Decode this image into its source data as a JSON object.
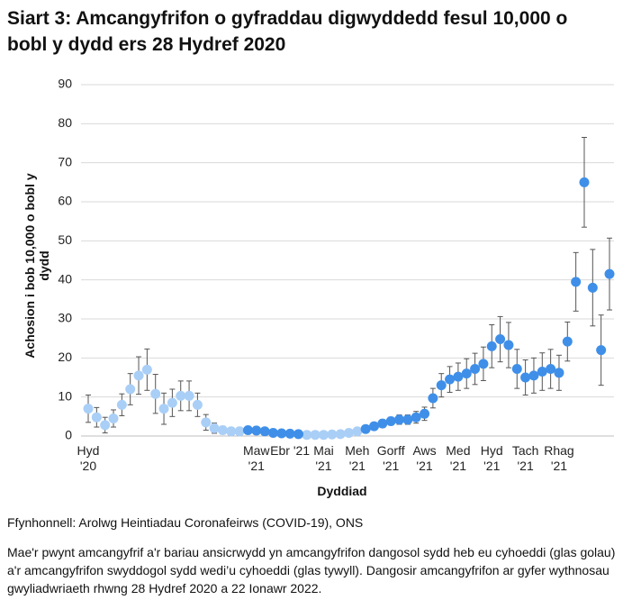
{
  "chart_data": {
    "type": "scatter",
    "title": "Siart 3: Amcangyfrifon o gyfraddau digwyddedd fesul 10,000 o bobl y dydd ers 28 Hydref 2020",
    "x_label": "Dyddiad",
    "y_label": "Achosion i bob 10,000 o bobl y dydd",
    "source": "Ffynhonnell: Arolwg Heintiadau Coronafeirws (COVID-19), ONS",
    "note": "Mae'r pwynt amcangyfrif a'r bariau ansicrwydd yn amcangyfrifon dangosol sydd heb eu cyhoeddi (glas golau) a'r amcangyfrifon swyddogol sydd wedi’u cyhoeddi (glas tywyll). Dangosir amcangyfrifon ar gyfer wythnosau gwyliadwriaeth rhwng 28 Hydref 2020 a 22 Ionawr 2022.",
    "categories": [
      "Hyd '20",
      null,
      null,
      null,
      null,
      null,
      null,
      null,
      null,
      null,
      null,
      null,
      null,
      null,
      null,
      null,
      null,
      null,
      null,
      null,
      "Maw '21",
      null,
      null,
      null,
      "Ebr '21",
      null,
      null,
      null,
      "Mai '21",
      null,
      null,
      null,
      "Meh '21",
      null,
      null,
      null,
      "Gorff '21",
      null,
      null,
      null,
      "Aws '21",
      null,
      null,
      null,
      "Med '21",
      null,
      null,
      null,
      "Hyd '21",
      null,
      null,
      null,
      "Tach '21",
      null,
      null,
      null,
      "Rhag '21",
      null,
      null,
      null,
      null,
      null,
      null
    ],
    "series": [
      {
        "color": "#a9cff7",
        "values": [
          7,
          4.8,
          2.8,
          4.5,
          8,
          12,
          15.5,
          17,
          10.8,
          7,
          8.5,
          10.3,
          10.3,
          8,
          3.5,
          2,
          1.5,
          1.2,
          1.2,
          null,
          null,
          null,
          null,
          null,
          null,
          null,
          0.3,
          0.3,
          0.3,
          0.4,
          0.5,
          0.8,
          1.2,
          null,
          null,
          null,
          null,
          null,
          null,
          null,
          null,
          null,
          null,
          null,
          null,
          null,
          null,
          null,
          null,
          null,
          null,
          null,
          null,
          null,
          null,
          null,
          null,
          null,
          null,
          null,
          null,
          null,
          null
        ],
        "errors": [
          3.5,
          2.5,
          2,
          2.2,
          2.8,
          4,
          4.8,
          5.3,
          5,
          4,
          3.5,
          3.8,
          3.8,
          3,
          2,
          1.3,
          1,
          1,
          1,
          null,
          null,
          null,
          null,
          null,
          null,
          null,
          0.3,
          0.3,
          0.3,
          0.3,
          0.4,
          0.5,
          0.6,
          null,
          null,
          null,
          null,
          null,
          null,
          null,
          null,
          null,
          null,
          null,
          null,
          null,
          null,
          null,
          null,
          null,
          null,
          null,
          null,
          null,
          null,
          null,
          null,
          null,
          null,
          null,
          null,
          null,
          null
        ]
      },
      {
        "color": "#3f8fe9",
        "values": [
          null,
          null,
          null,
          null,
          null,
          null,
          null,
          null,
          null,
          null,
          null,
          null,
          null,
          null,
          null,
          null,
          null,
          null,
          null,
          1.5,
          1.4,
          1.2,
          0.8,
          0.7,
          0.6,
          0.5,
          null,
          null,
          null,
          null,
          null,
          null,
          null,
          1.8,
          2.5,
          3.2,
          3.8,
          4.2,
          4.2,
          4.8,
          5.7,
          9.7,
          13,
          14.5,
          15.2,
          16,
          17.2,
          18.5,
          23,
          24.8,
          23.3,
          17.2,
          15,
          15.5,
          16.5,
          17.2,
          16.2,
          24.2,
          39.5,
          65,
          38,
          22,
          41.5
        ],
        "errors": [
          null,
          null,
          null,
          null,
          null,
          null,
          null,
          null,
          null,
          null,
          null,
          null,
          null,
          null,
          null,
          null,
          null,
          null,
          null,
          0.8,
          0.8,
          0.7,
          0.5,
          0.5,
          0.4,
          0.4,
          null,
          null,
          null,
          null,
          null,
          null,
          null,
          0.6,
          0.8,
          1,
          1,
          1.2,
          1.2,
          1.5,
          1.7,
          2.5,
          3,
          3.3,
          3.5,
          3.8,
          4,
          4.3,
          5.5,
          5.8,
          5.8,
          5,
          4.5,
          4.5,
          4.8,
          5,
          4.5,
          5,
          7.5,
          11.5,
          9.8,
          9,
          9.2
        ]
      }
    ],
    "ylim": [
      0,
      90
    ],
    "yticks": [
      0,
      10,
      20,
      30,
      40,
      50,
      60,
      70,
      80,
      90
    ],
    "grid": true,
    "error_color": "#555555"
  }
}
